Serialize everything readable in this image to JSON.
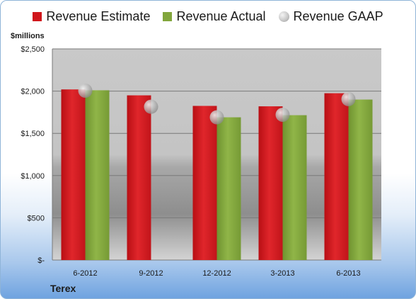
{
  "legend": {
    "estimate": "Revenue Estimate",
    "actual": "Revenue Actual",
    "gaap": "Revenue GAAP"
  },
  "unit_label": "$millions",
  "company": "Terex",
  "colors": {
    "estimate": "#d0161b",
    "actual": "#82a63c",
    "gaap": "#c8c8c8"
  },
  "chart_data": {
    "type": "bar",
    "categories": [
      "6-2012",
      "9-2012",
      "12-2012",
      "3-2013",
      "6-2013"
    ],
    "series": [
      {
        "name": "Revenue Estimate",
        "values": [
          2020,
          1950,
          1825,
          1820,
          1975
        ]
      },
      {
        "name": "Revenue Actual",
        "values": [
          2010,
          null,
          1690,
          1715,
          1900
        ]
      },
      {
        "name": "Revenue GAAP",
        "style": "marker",
        "values": [
          2005,
          1815,
          1690,
          1720,
          1905
        ]
      }
    ],
    "ylabel": "$millions",
    "ylim": [
      0,
      2500
    ],
    "yticks": [
      0,
      500,
      1000,
      1500,
      2000,
      2500
    ],
    "ytick_labels": [
      "$-",
      "$500",
      "$1,000",
      "$1,500",
      "$2,000",
      "$2,500"
    ],
    "grid": true,
    "legend_position": "top"
  }
}
